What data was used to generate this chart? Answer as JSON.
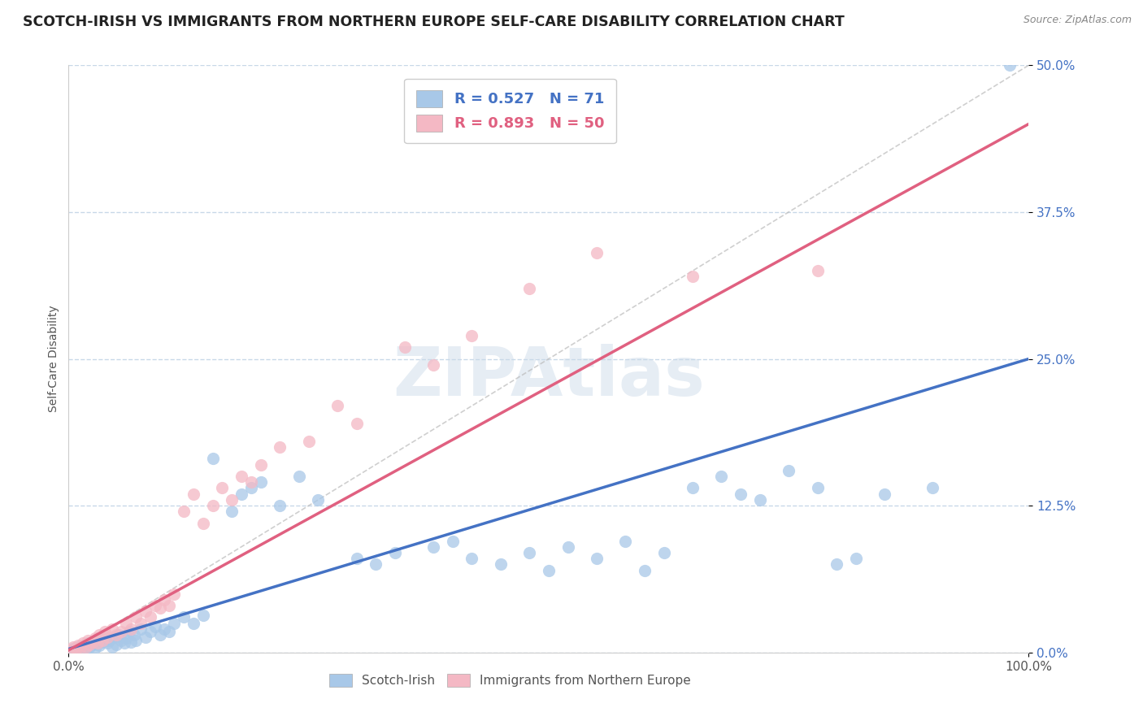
{
  "title": "SCOTCH-IRISH VS IMMIGRANTS FROM NORTHERN EUROPE SELF-CARE DISABILITY CORRELATION CHART",
  "source": "Source: ZipAtlas.com",
  "ylabel": "Self-Care Disability",
  "xlim": [
    0,
    100
  ],
  "ylim": [
    0,
    50
  ],
  "watermark_text": "ZIPAtlas",
  "legend_r1": "R = 0.527",
  "legend_n1": "N = 71",
  "legend_r2": "R = 0.893",
  "legend_n2": "N = 50",
  "scotch_irish_color": "#a8c8e8",
  "northern_europe_color": "#f4b8c4",
  "scotch_irish_line_color": "#4472c4",
  "northern_europe_line_color": "#e06080",
  "si_line": [
    [
      0,
      0.3
    ],
    [
      100,
      25.0
    ]
  ],
  "ne_line": [
    [
      0,
      0.2
    ],
    [
      100,
      45.0
    ]
  ],
  "diag_line": [
    [
      0,
      0
    ],
    [
      100,
      50
    ]
  ],
  "scotch_irish_points": [
    [
      0.5,
      0.3
    ],
    [
      0.8,
      0.2
    ],
    [
      1.0,
      0.5
    ],
    [
      1.2,
      0.4
    ],
    [
      1.5,
      0.6
    ],
    [
      1.8,
      0.3
    ],
    [
      2.0,
      0.8
    ],
    [
      2.2,
      0.5
    ],
    [
      2.5,
      0.7
    ],
    [
      2.8,
      0.4
    ],
    [
      3.0,
      1.0
    ],
    [
      3.2,
      0.6
    ],
    [
      3.5,
      0.9
    ],
    [
      3.8,
      1.2
    ],
    [
      4.0,
      0.8
    ],
    [
      4.2,
      1.0
    ],
    [
      4.5,
      0.5
    ],
    [
      4.8,
      1.3
    ],
    [
      5.0,
      0.7
    ],
    [
      5.2,
      1.5
    ],
    [
      5.5,
      1.0
    ],
    [
      5.8,
      0.8
    ],
    [
      6.0,
      1.2
    ],
    [
      6.3,
      1.8
    ],
    [
      6.5,
      0.9
    ],
    [
      6.8,
      1.5
    ],
    [
      7.0,
      1.0
    ],
    [
      7.5,
      2.0
    ],
    [
      8.0,
      1.3
    ],
    [
      8.5,
      1.8
    ],
    [
      9.0,
      2.2
    ],
    [
      9.5,
      1.5
    ],
    [
      10.0,
      2.0
    ],
    [
      10.5,
      1.8
    ],
    [
      11.0,
      2.5
    ],
    [
      12.0,
      3.0
    ],
    [
      13.0,
      2.5
    ],
    [
      14.0,
      3.2
    ],
    [
      15.0,
      16.5
    ],
    [
      17.0,
      12.0
    ],
    [
      18.0,
      13.5
    ],
    [
      19.0,
      14.0
    ],
    [
      20.0,
      14.5
    ],
    [
      22.0,
      12.5
    ],
    [
      24.0,
      15.0
    ],
    [
      26.0,
      13.0
    ],
    [
      30.0,
      8.0
    ],
    [
      32.0,
      7.5
    ],
    [
      34.0,
      8.5
    ],
    [
      38.0,
      9.0
    ],
    [
      40.0,
      9.5
    ],
    [
      42.0,
      8.0
    ],
    [
      45.0,
      7.5
    ],
    [
      48.0,
      8.5
    ],
    [
      50.0,
      7.0
    ],
    [
      52.0,
      9.0
    ],
    [
      55.0,
      8.0
    ],
    [
      58.0,
      9.5
    ],
    [
      60.0,
      7.0
    ],
    [
      62.0,
      8.5
    ],
    [
      65.0,
      14.0
    ],
    [
      68.0,
      15.0
    ],
    [
      70.0,
      13.5
    ],
    [
      72.0,
      13.0
    ],
    [
      75.0,
      15.5
    ],
    [
      78.0,
      14.0
    ],
    [
      80.0,
      7.5
    ],
    [
      82.0,
      8.0
    ],
    [
      85.0,
      13.5
    ],
    [
      90.0,
      14.0
    ],
    [
      98.0,
      50.0
    ]
  ],
  "northern_europe_points": [
    [
      0.3,
      0.2
    ],
    [
      0.5,
      0.5
    ],
    [
      0.8,
      0.3
    ],
    [
      1.0,
      0.6
    ],
    [
      1.2,
      0.4
    ],
    [
      1.5,
      0.8
    ],
    [
      1.8,
      0.5
    ],
    [
      2.0,
      1.0
    ],
    [
      2.2,
      0.7
    ],
    [
      2.5,
      0.9
    ],
    [
      2.8,
      1.2
    ],
    [
      3.0,
      0.8
    ],
    [
      3.2,
      1.5
    ],
    [
      3.5,
      1.0
    ],
    [
      3.8,
      1.8
    ],
    [
      4.0,
      1.3
    ],
    [
      4.5,
      2.0
    ],
    [
      5.0,
      1.5
    ],
    [
      5.5,
      1.8
    ],
    [
      6.0,
      2.5
    ],
    [
      6.5,
      2.0
    ],
    [
      7.0,
      3.0
    ],
    [
      7.5,
      2.5
    ],
    [
      8.0,
      3.5
    ],
    [
      8.5,
      3.0
    ],
    [
      9.0,
      4.0
    ],
    [
      9.5,
      3.8
    ],
    [
      10.0,
      4.5
    ],
    [
      10.5,
      4.0
    ],
    [
      11.0,
      5.0
    ],
    [
      12.0,
      12.0
    ],
    [
      13.0,
      13.5
    ],
    [
      14.0,
      11.0
    ],
    [
      15.0,
      12.5
    ],
    [
      16.0,
      14.0
    ],
    [
      17.0,
      13.0
    ],
    [
      18.0,
      15.0
    ],
    [
      19.0,
      14.5
    ],
    [
      20.0,
      16.0
    ],
    [
      22.0,
      17.5
    ],
    [
      25.0,
      18.0
    ],
    [
      28.0,
      21.0
    ],
    [
      30.0,
      19.5
    ],
    [
      35.0,
      26.0
    ],
    [
      38.0,
      24.5
    ],
    [
      42.0,
      27.0
    ],
    [
      48.0,
      31.0
    ],
    [
      55.0,
      34.0
    ],
    [
      65.0,
      32.0
    ],
    [
      78.0,
      32.5
    ]
  ],
  "background_color": "#ffffff",
  "grid_color": "#c8d8e8",
  "title_fontsize": 12.5,
  "axis_label_fontsize": 10,
  "tick_fontsize": 11,
  "legend_fontsize": 13,
  "tick_color": "#4472c4",
  "source_color": "#888888"
}
